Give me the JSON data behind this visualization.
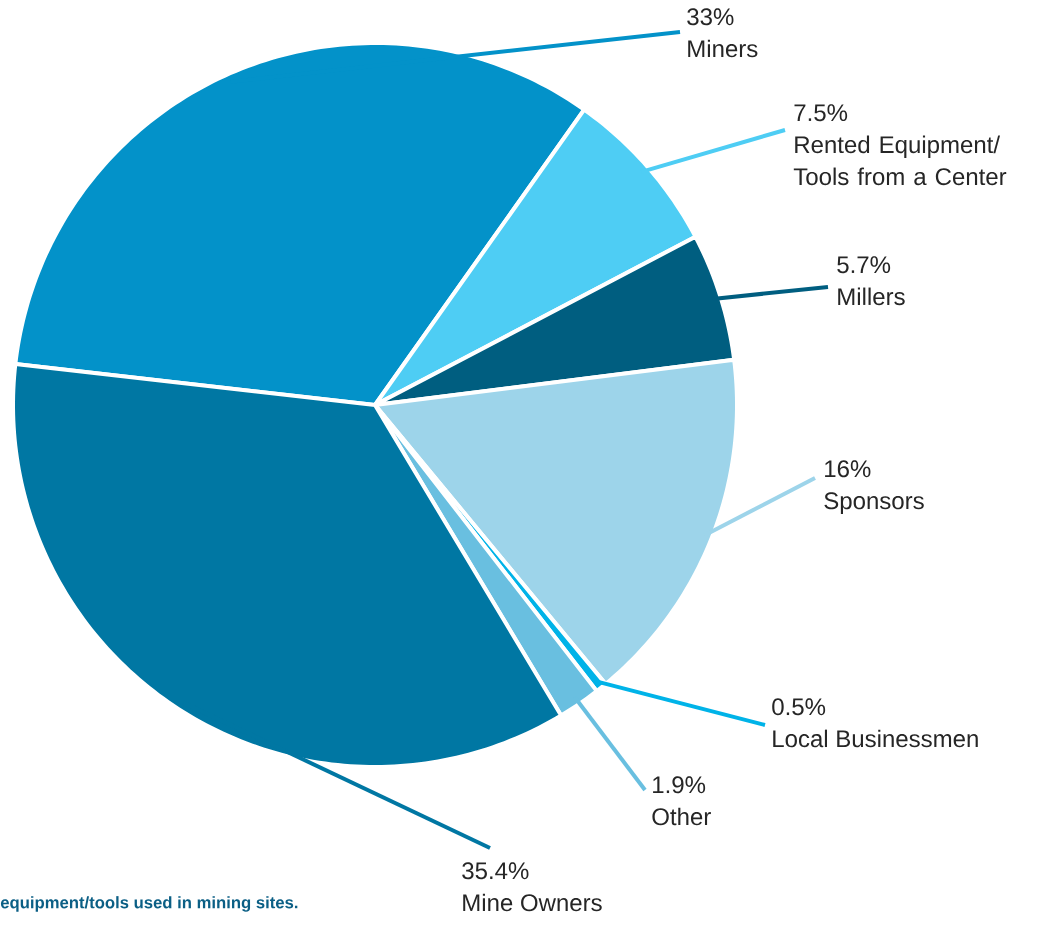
{
  "chart_data": {
    "type": "pie",
    "categories": [
      "Miners",
      "Rented Equipment/ Tools from a Center",
      "Millers",
      "Sponsors",
      "Local Businessmen",
      "Other",
      "Mine Owners"
    ],
    "values": [
      33,
      7.5,
      5.7,
      16,
      0.5,
      1.9,
      35.4
    ],
    "value_labels": [
      "33%",
      "7.5%",
      "5.7%",
      "16%",
      "0.5%",
      "1.9%",
      "35.4%"
    ],
    "colors": [
      "#0392c9",
      "#4ecdf4",
      "#005e80",
      "#9dd4ea",
      "#00b3e8",
      "#69bfe0",
      "#0077a3"
    ],
    "annotations": [
      "equipment/tools used in mining sites."
    ]
  }
}
